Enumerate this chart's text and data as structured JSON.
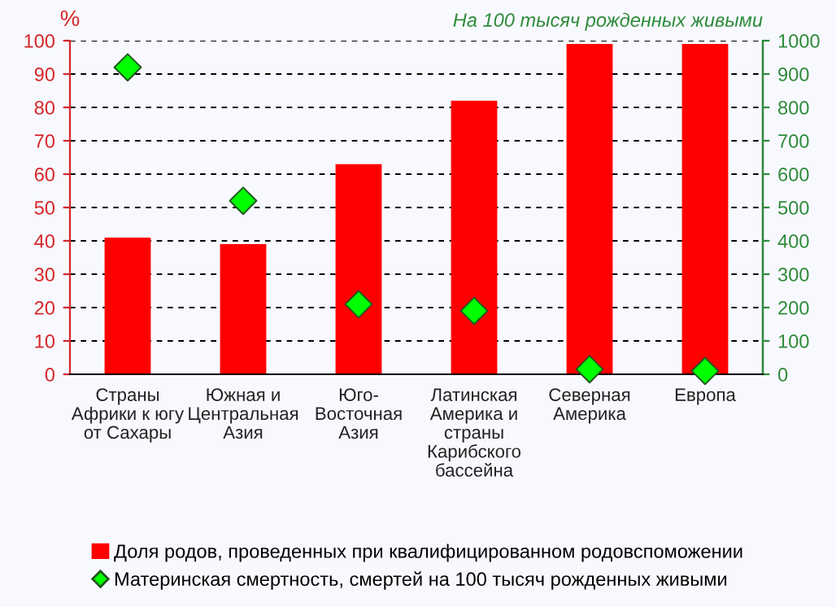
{
  "chart_data": {
    "type": "bar",
    "categories": [
      "Страны\nАфрики к югу\nот Сахары",
      "Южная и\nЦентральная\nАзия",
      "Юго-\nВосточная\nАзия",
      "Латинская\nАмерика и\nстраны\nКарибского\nбассейна",
      "Северная\nАмерика",
      "Европа"
    ],
    "ylabel": "%",
    "y2label": "На 100 тысяч рожденных живыми",
    "series": [
      {
        "name": "Доля родов, проведенных при квалифицированном родовспоможении",
        "color": "#ff0000",
        "values": [
          41,
          39,
          63,
          82,
          99,
          99
        ]
      },
      {
        "name": "Материнская смертность, смертей на 100 тысяч рожденных живыми",
        "color": "#00ff00",
        "type": "scatter",
        "axis": "y2",
        "marker": "diamond",
        "values": [
          920,
          520,
          210,
          190,
          15,
          10
        ]
      }
    ],
    "ylim": [
      0,
      100
    ],
    "yticks": [
      0,
      10,
      20,
      30,
      40,
      50,
      60,
      70,
      80,
      90,
      100
    ],
    "y2lim": [
      0,
      1000
    ],
    "y2ticks": [
      0,
      100,
      200,
      300,
      400,
      500,
      600,
      700,
      800,
      900,
      1000
    ],
    "grid": "y",
    "legend": "bottom"
  }
}
